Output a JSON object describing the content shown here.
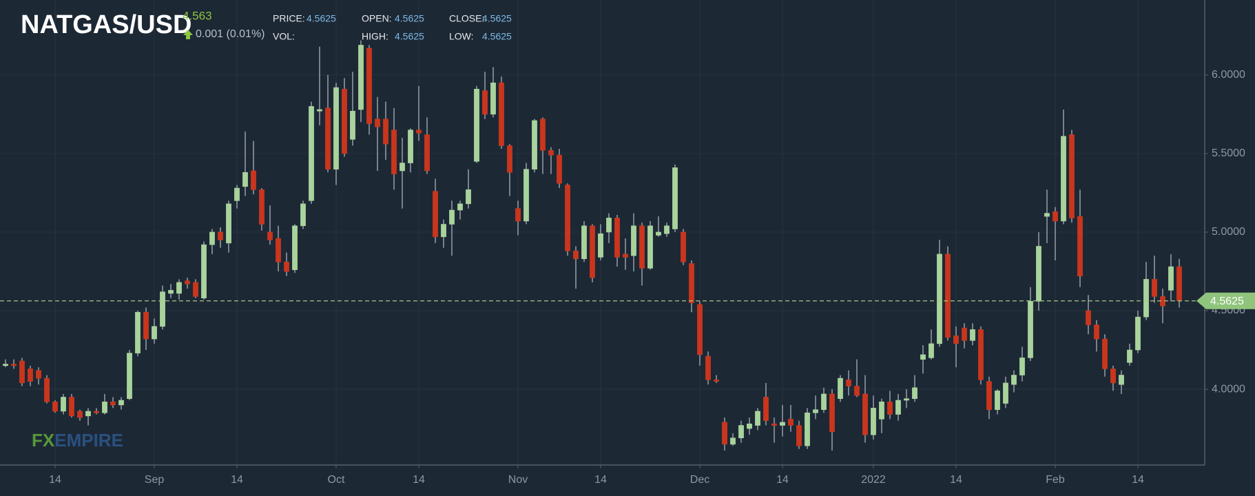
{
  "header": {
    "symbol": "NATGAS/USD",
    "last": "4.563",
    "change": "0.001 (0.01%)",
    "price_label": "PRICE:",
    "price": "4.5625",
    "open_label": "OPEN:",
    "open": "4.5625",
    "close_label": "CLOSE:",
    "close": "4.5625",
    "vol_label": "VOL:",
    "high_label": "HIGH:",
    "high": "4.5625",
    "low_label": "LOW:",
    "low": "4.5625"
  },
  "logo": [
    "FX",
    "EMPIRE"
  ],
  "chart_data": {
    "type": "candlestick",
    "categories": [
      null,
      null,
      null,
      null,
      null,
      null,
      "14",
      null,
      null,
      null,
      null,
      null,
      null,
      null,
      null,
      null,
      null,
      null,
      "Sep",
      null,
      null,
      null,
      null,
      null,
      null,
      null,
      null,
      null,
      "14",
      null,
      null,
      null,
      null,
      null,
      null,
      null,
      null,
      null,
      null,
      null,
      "Oct",
      null,
      null,
      null,
      null,
      null,
      null,
      null,
      null,
      null,
      "14",
      null,
      null,
      null,
      null,
      null,
      null,
      null,
      null,
      null,
      null,
      null,
      "Nov",
      null,
      null,
      null,
      null,
      null,
      null,
      null,
      null,
      null,
      "14",
      null,
      null,
      null,
      null,
      null,
      null,
      null,
      null,
      null,
      null,
      null,
      "Dec",
      null,
      null,
      null,
      null,
      null,
      null,
      null,
      null,
      null,
      "14",
      null,
      null,
      null,
      null,
      null,
      null,
      null,
      null,
      null,
      null,
      "2022",
      null,
      null,
      null,
      null,
      null,
      null,
      null,
      null,
      null,
      "14",
      null,
      null,
      null,
      null,
      null,
      null,
      null,
      null,
      null,
      null,
      null,
      "Feb",
      null,
      null,
      null,
      null,
      null,
      null,
      null,
      null,
      null,
      "14",
      null,
      null,
      null,
      null,
      null
    ],
    "open": [
      4.15,
      4.16,
      4.18,
      4.13,
      4.12,
      4.07,
      3.92,
      3.86,
      3.95,
      3.86,
      3.83,
      3.86,
      3.85,
      3.92,
      3.9,
      3.94,
      4.23,
      4.49,
      4.32,
      4.4,
      4.61,
      4.61,
      4.69,
      4.68,
      4.58,
      4.92,
      5.0,
      4.93,
      5.2,
      5.29,
      5.39,
      5.27,
      5.0,
      4.96,
      4.81,
      4.76,
      5.04,
      5.2,
      5.77,
      5.79,
      5.4,
      5.91,
      5.59,
      5.78,
      6.17,
      5.72,
      5.72,
      5.65,
      5.39,
      5.44,
      5.65,
      5.62,
      5.26,
      4.97,
      5.05,
      5.14,
      5.18,
      5.45,
      5.9,
      5.75,
      5.95,
      5.55,
      5.15,
      5.07,
      5.4,
      5.72,
      5.52,
      5.49,
      5.3,
      4.88,
      4.83,
      5.04,
      4.84,
      5.0,
      5.09,
      4.86,
      4.85,
      5.04,
      4.77,
      4.98,
      4.99,
      5.02,
      5.0,
      4.8,
      4.54,
      4.21,
      4.06,
      3.79,
      3.65,
      3.69,
      3.75,
      3.77,
      3.95,
      3.78,
      3.77,
      3.81,
      3.77,
      3.64,
      3.85,
      3.87,
      3.97,
      3.94,
      4.06,
      4.02,
      3.97,
      3.71,
      3.81,
      3.92,
      3.84,
      3.93,
      3.94,
      4.19,
      4.2,
      4.29,
      4.86,
      4.34,
      4.39,
      4.31,
      4.38,
      4.05,
      3.87,
      3.91,
      4.03,
      4.09,
      4.2,
      4.56,
      5.1,
      5.13,
      5.07,
      5.62,
      5.1,
      4.5,
      4.41,
      4.32,
      4.13,
      4.03,
      4.17,
      4.25,
      4.46,
      4.7,
      4.59,
      4.63,
      4.78
    ],
    "high": [
      4.19,
      4.19,
      4.2,
      4.15,
      4.14,
      4.09,
      3.93,
      3.97,
      3.97,
      3.87,
      3.88,
      3.88,
      3.97,
      3.95,
      3.95,
      4.25,
      4.5,
      4.52,
      4.45,
      4.66,
      4.67,
      4.7,
      4.71,
      4.7,
      4.94,
      5.02,
      5.03,
      5.2,
      5.3,
      5.64,
      5.58,
      5.28,
      5.17,
      5.04,
      4.87,
      5.05,
      5.2,
      5.83,
      6.18,
      6.0,
      5.95,
      5.98,
      6.02,
      6.22,
      6.19,
      5.86,
      5.83,
      5.79,
      5.6,
      5.66,
      5.93,
      5.73,
      5.34,
      5.08,
      5.2,
      5.2,
      5.4,
      5.93,
      6.02,
      6.05,
      5.99,
      5.56,
      5.2,
      5.44,
      5.72,
      5.73,
      5.54,
      5.53,
      5.31,
      4.91,
      5.07,
      5.05,
      5.05,
      5.12,
      5.11,
      4.96,
      5.12,
      5.06,
      5.07,
      5.1,
      5.06,
      5.43,
      5.02,
      4.82,
      4.56,
      4.24,
      4.09,
      3.82,
      3.72,
      3.8,
      3.82,
      3.88,
      4.04,
      3.82,
      3.9,
      3.9,
      3.8,
      3.88,
      3.96,
      4.01,
      4.0,
      4.09,
      4.12,
      4.19,
      4.09,
      3.96,
      3.94,
      3.99,
      3.97,
      4.0,
      4.09,
      4.28,
      4.38,
      4.95,
      4.91,
      4.4,
      4.42,
      4.42,
      4.4,
      4.08,
      4.0,
      4.08,
      4.12,
      4.27,
      4.65,
      5.0,
      5.27,
      5.16,
      5.78,
      5.65,
      5.27,
      4.6,
      4.44,
      4.35,
      4.15,
      4.12,
      4.29,
      4.5,
      4.81,
      4.85,
      4.64,
      4.86,
      4.83
    ],
    "low": [
      4.14,
      4.13,
      4.02,
      4.02,
      4.03,
      3.91,
      3.85,
      3.84,
      3.82,
      3.8,
      3.77,
      3.84,
      3.84,
      3.88,
      3.87,
      3.93,
      4.21,
      4.25,
      4.29,
      4.38,
      4.58,
      4.57,
      4.64,
      4.58,
      4.57,
      4.86,
      4.9,
      4.87,
      5.15,
      5.23,
      5.24,
      5.01,
      4.92,
      4.75,
      4.72,
      4.74,
      5.02,
      5.18,
      5.68,
      5.38,
      5.3,
      5.48,
      5.55,
      5.7,
      5.62,
      5.39,
      5.46,
      5.27,
      5.15,
      5.38,
      5.58,
      5.37,
      4.93,
      4.9,
      4.85,
      5.08,
      5.15,
      5.44,
      5.72,
      5.73,
      5.53,
      5.23,
      4.98,
      5.05,
      5.38,
      5.37,
      5.37,
      5.28,
      4.85,
      4.64,
      4.81,
      4.68,
      4.82,
      4.93,
      4.78,
      4.76,
      4.75,
      4.66,
      4.76,
      4.97,
      4.97,
      5.0,
      4.79,
      4.49,
      4.15,
      4.03,
      4.04,
      3.61,
      3.64,
      3.66,
      3.71,
      3.74,
      3.77,
      3.66,
      3.7,
      3.73,
      3.62,
      3.62,
      3.81,
      3.85,
      3.61,
      3.92,
      3.96,
      3.95,
      3.66,
      3.68,
      3.72,
      3.81,
      3.8,
      3.88,
      3.92,
      4.1,
      4.19,
      4.27,
      4.31,
      4.14,
      4.26,
      4.28,
      4.03,
      3.81,
      3.84,
      3.88,
      3.98,
      4.05,
      4.18,
      4.5,
      4.93,
      4.82,
      5.05,
      5.06,
      4.65,
      4.35,
      4.24,
      4.08,
      3.99,
      3.97,
      4.15,
      4.23,
      4.44,
      4.55,
      4.42,
      4.56,
      4.52
    ],
    "close": [
      4.16,
      4.15,
      4.04,
      4.05,
      4.07,
      3.92,
      3.86,
      3.95,
      3.83,
      3.82,
      3.86,
      3.85,
      3.92,
      3.9,
      3.93,
      4.23,
      4.49,
      4.32,
      4.4,
      4.62,
      4.63,
      4.68,
      4.67,
      4.59,
      4.92,
      5.0,
      4.95,
      5.18,
      5.28,
      5.38,
      5.27,
      5.05,
      4.95,
      4.81,
      4.75,
      5.04,
      5.18,
      5.8,
      5.78,
      5.4,
      5.92,
      5.5,
      5.77,
      6.19,
      5.69,
      5.67,
      5.56,
      5.37,
      5.44,
      5.65,
      5.63,
      5.39,
      4.97,
      5.05,
      5.14,
      5.18,
      5.27,
      5.91,
      5.75,
      5.95,
      5.55,
      5.38,
      5.07,
      5.4,
      5.71,
      5.52,
      5.49,
      5.31,
      4.88,
      4.83,
      5.04,
      4.71,
      4.99,
      5.09,
      4.84,
      4.84,
      5.04,
      4.77,
      5.04,
      5.0,
      5.04,
      5.41,
      4.81,
      4.55,
      4.22,
      4.06,
      4.05,
      3.65,
      3.69,
      3.77,
      3.78,
      3.86,
      3.8,
      3.77,
      3.79,
      3.77,
      3.64,
      3.85,
      3.87,
      3.97,
      3.73,
      4.07,
      4.02,
      3.96,
      3.71,
      3.88,
      3.92,
      3.84,
      3.93,
      3.94,
      4.01,
      4.22,
      4.29,
      4.86,
      4.33,
      4.29,
      4.31,
      4.38,
      4.06,
      3.87,
      3.99,
      4.04,
      4.09,
      4.2,
      4.56,
      4.91,
      5.12,
      5.07,
      5.61,
      5.09,
      4.72,
      4.41,
      4.32,
      4.13,
      4.04,
      4.09,
      4.25,
      4.46,
      4.7,
      4.59,
      4.53,
      4.78,
      4.5625
    ],
    "ylim": [
      3.518,
      6.477
    ],
    "yticks": [
      {
        "value": 4,
        "label": "4.0000"
      },
      {
        "value": 4.5,
        "label": "4.5000"
      },
      {
        "value": 5,
        "label": "5.0000"
      },
      {
        "value": 5.5,
        "label": "5.5000"
      },
      {
        "value": 6,
        "label": "6.0000"
      }
    ],
    "current_price": 4.5625,
    "up_color": "#a8d39c",
    "down_color": "#c9361d",
    "wick_color": "#b7bec6",
    "grid": true
  }
}
